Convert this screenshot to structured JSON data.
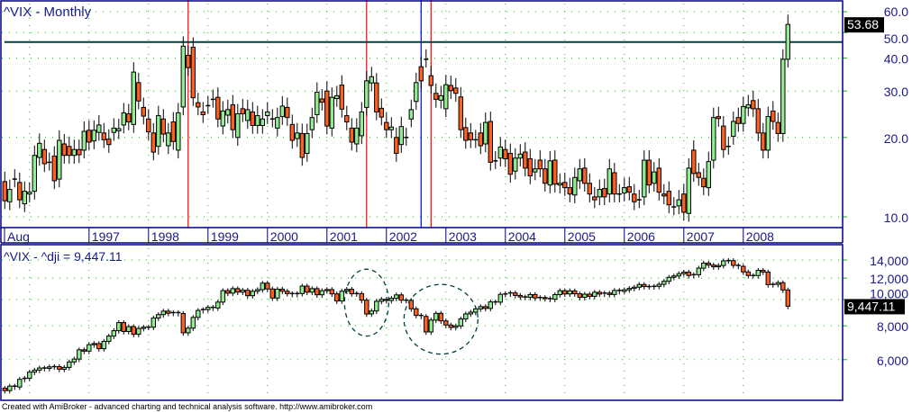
{
  "upper": {
    "title": "^VIX - Monthly",
    "last_value_label": "53.68",
    "horizontal_line_value": 46,
    "horizontal_line_color": "#004040"
  },
  "lower": {
    "title": "^VIX - ^dji = 9,447.11",
    "last_value_label": "9,447.11",
    "circled_periods": [
      {
        "from": "2001-06",
        "to": "2001-12"
      },
      {
        "from": "2002-06",
        "to": "2003-06"
      }
    ],
    "circle_color": "#004040"
  },
  "footer": "Created with AmiBroker - advanced charting and technical analysis software. http://www.amibroker.com",
  "colors": {
    "up": "#90ee90",
    "down": "#ff6020",
    "grid": "#00cc00",
    "axis_text": "#1a1a8c",
    "frame": "#000080",
    "marker_red": "#ff0000",
    "marker_blue": "#0000ff"
  },
  "chart_data": [
    {
      "type": "candlestick",
      "title": "^VIX - Monthly",
      "scale": "log",
      "ylim": [
        9,
        62
      ],
      "yticks": [
        "10.0",
        "20.0",
        "30.0",
        "40.0",
        "50.0",
        "60.0"
      ],
      "ytick_values": [
        10,
        20,
        30,
        40,
        50,
        60
      ],
      "x_start": "1995-08",
      "x_end": "2008-10",
      "xtick_labels": [
        "Aug",
        "1997",
        "1998",
        "1999",
        "2000",
        "2001",
        "2002",
        "2003",
        "2004",
        "2005",
        "2006",
        "2007",
        "2008"
      ],
      "grid": true,
      "vertical_markers": [
        {
          "month": "1998-09",
          "color": "#ff0000"
        },
        {
          "month": "2001-09",
          "color": "#ff0000"
        },
        {
          "month": "2002-08",
          "color": "#0000ff"
        },
        {
          "month": "2002-10",
          "color": "#ff0000"
        }
      ],
      "open_close": [
        [
          13.6,
          11.5
        ],
        [
          11.4,
          12.7
        ],
        [
          13.9,
          13.9
        ],
        [
          13.5,
          11.6
        ],
        [
          11.2,
          12.5
        ],
        [
          12.2,
          12.4
        ],
        [
          12.5,
          17.1
        ],
        [
          16.8,
          19.0
        ],
        [
          18.0,
          15.9
        ],
        [
          16.1,
          16.1
        ],
        [
          17.0,
          13.7
        ],
        [
          13.9,
          19.5
        ],
        [
          18.9,
          17.1
        ],
        [
          18.5,
          17.1
        ],
        [
          17.1,
          18.0
        ],
        [
          18.0,
          17.2
        ],
        [
          17.9,
          21.1
        ],
        [
          21.3,
          19.2
        ],
        [
          19.4,
          21.3
        ],
        [
          20.9,
          22.3
        ],
        [
          20.8,
          19.6
        ],
        [
          19.7,
          18.8
        ],
        [
          20.9,
          21.7
        ],
        [
          21.2,
          21.6
        ],
        [
          22.3,
          24.8
        ],
        [
          24.6,
          22.9
        ],
        [
          22.4,
          35.4
        ],
        [
          32.3,
          27.5
        ],
        [
          26.0,
          24.1
        ],
        [
          23.5,
          21.0
        ],
        [
          20.8,
          17.6
        ],
        [
          18.5,
          24.2
        ],
        [
          23.5,
          20.6
        ],
        [
          18.6,
          20.8
        ],
        [
          22.9,
          19.3
        ],
        [
          17.9,
          24.8
        ],
        [
          26.1,
          44.4
        ],
        [
          41.0,
          36.8
        ],
        [
          44.0,
          28.3
        ],
        [
          27.1,
          26.1
        ],
        [
          25.0,
          24.4
        ],
        [
          26.4,
          26.4
        ],
        [
          27.9,
          27.9
        ],
        [
          28.4,
          23.5
        ],
        [
          22.1,
          25.2
        ],
        [
          24.3,
          25.5
        ],
        [
          26.6,
          21.4
        ],
        [
          20.0,
          24.6
        ],
        [
          25.7,
          24.6
        ],
        [
          23.2,
          25.5
        ],
        [
          25.0,
          22.2
        ],
        [
          22.2,
          24.2
        ],
        [
          22.2,
          23.5
        ],
        [
          24.2,
          25.0
        ],
        [
          23.5,
          23.5
        ],
        [
          21.7,
          23.8
        ],
        [
          24.0,
          26.3
        ],
        [
          26.0,
          23.8
        ],
        [
          22.4,
          19.5
        ],
        [
          19.8,
          20.8
        ],
        [
          20.7,
          16.8
        ],
        [
          17.4,
          20.7
        ],
        [
          21.4,
          23.8
        ],
        [
          24.4,
          29.7
        ],
        [
          28.0,
          27.2
        ],
        [
          30.0,
          22.1
        ],
        [
          21.7,
          28.4
        ],
        [
          28.1,
          28.8
        ],
        [
          31.6,
          25.6
        ],
        [
          24.2,
          22.9
        ],
        [
          21.7,
          19.2
        ],
        [
          18.9,
          21.7
        ],
        [
          20.3,
          25.0
        ],
        [
          26.0,
          32.8
        ],
        [
          32.2,
          34.0
        ],
        [
          32.2,
          25.0
        ],
        [
          25.8,
          23.9
        ],
        [
          22.8,
          21.4
        ],
        [
          21.4,
          21.9
        ],
        [
          20.0,
          17.4
        ],
        [
          18.8,
          22.0
        ],
        [
          20.0,
          20.0
        ],
        [
          23.5,
          25.5
        ],
        [
          27.4,
          32.3
        ],
        [
          37.1,
          32.8
        ],
        [
          39.6,
          39.6
        ],
        [
          34.3,
          31.5
        ],
        [
          29.4,
          27.9
        ],
        [
          27.7,
          28.8
        ],
        [
          25.7,
          31.7
        ],
        [
          31.5,
          30.1
        ],
        [
          30.8,
          29.4
        ],
        [
          28.5,
          21.4
        ],
        [
          21.8,
          19.5
        ],
        [
          20.8,
          19.6
        ],
        [
          19.6,
          19.6
        ],
        [
          20.8,
          18.6
        ],
        [
          18.9,
          22.8
        ],
        [
          23.0,
          16.1
        ],
        [
          16.3,
          16.3
        ],
        [
          16.7,
          18.4
        ],
        [
          18.0,
          16.6
        ],
        [
          17.4,
          14.5
        ],
        [
          14.9,
          16.7
        ],
        [
          16.7,
          17.3
        ],
        [
          17.6,
          15.3
        ],
        [
          16.6,
          14.3
        ],
        [
          14.8,
          15.2
        ],
        [
          16.4,
          15.2
        ],
        [
          15.2,
          13.4
        ],
        [
          13.2,
          16.3
        ],
        [
          16.4,
          13.3
        ],
        [
          13.2,
          13.4
        ],
        [
          13.5,
          12.9
        ],
        [
          12.9,
          12.2
        ],
        [
          12.1,
          14.1
        ],
        [
          13.7,
          15.2
        ],
        [
          15.3,
          13.4
        ],
        [
          13.4,
          12.2
        ],
        [
          11.9,
          11.6
        ],
        [
          11.9,
          12.7
        ],
        [
          12.8,
          11.9
        ],
        [
          12.2,
          15.2
        ],
        [
          14.7,
          12.2
        ],
        [
          12.2,
          12.2
        ],
        [
          12.3,
          12.9
        ],
        [
          13.0,
          12.4
        ],
        [
          12.2,
          11.4
        ],
        [
          11.6,
          11.6
        ],
        [
          11.9,
          16.4
        ],
        [
          16.4,
          13.2
        ],
        [
          13.4,
          14.8
        ],
        [
          15.3,
          12.4
        ],
        [
          12.2,
          12.0
        ],
        [
          12.5,
          11.1
        ],
        [
          10.9,
          10.9
        ],
        [
          11.0,
          11.6
        ],
        [
          12.2,
          10.4
        ],
        [
          10.3,
          15.3
        ],
        [
          17.9,
          14.6
        ],
        [
          14.7,
          14.1
        ],
        [
          14.0,
          13.0
        ],
        [
          12.9,
          16.2
        ],
        [
          16.4,
          23.8
        ],
        [
          24.0,
          23.6
        ],
        [
          22.1,
          18.0
        ],
        [
          18.5,
          18.5
        ],
        [
          20.2,
          23.0
        ],
        [
          23.8,
          22.6
        ],
        [
          22.6,
          26.2
        ],
        [
          25.9,
          26.6
        ],
        [
          27.6,
          25.7
        ],
        [
          25.7,
          20.8
        ],
        [
          20.8,
          17.9
        ],
        [
          17.9,
          24.0
        ],
        [
          25.2,
          23.0
        ],
        [
          22.8,
          20.7
        ],
        [
          20.7,
          39.6
        ],
        [
          39.6,
          53.68
        ]
      ]
    },
    {
      "type": "candlestick",
      "title": "^VIX - ^dji = 9,447.11",
      "scale": "log",
      "ylim": [
        4400,
        16500
      ],
      "yticks": [
        "6,000",
        "8,000",
        "10,000",
        "12,000",
        "14,000"
      ],
      "ytick_values": [
        6000,
        8000,
        10000,
        12000,
        14000
      ],
      "x_start": "1995-08",
      "x_end": "2008-10",
      "grid": true,
      "first_open": 4708,
      "closes": [
        4611,
        4789,
        4756,
        5075,
        5117,
        5395,
        5486,
        5587,
        5569,
        5643,
        5654,
        5529,
        5616,
        5882,
        6029,
        6522,
        6448,
        6813,
        6878,
        6584,
        7009,
        7331,
        7673,
        8223,
        7622,
        7945,
        7442,
        7823,
        7908,
        7907,
        8546,
        8800,
        9063,
        8900,
        8952,
        8883,
        7539,
        7843,
        8592,
        9117,
        9181,
        9359,
        9307,
        9786,
        10789,
        10560,
        10971,
        10655,
        10829,
        10337,
        10729,
        10878,
        11497,
        10941,
        10128,
        10922,
        10734,
        10522,
        10448,
        10522,
        11215,
        10651,
        10971,
        10415,
        10787,
        10887,
        10495,
        9879,
        10735,
        10912,
        10502,
        10523,
        9950,
        8848,
        9075,
        9852,
        10022,
        9920,
        10106,
        10404,
        9946,
        9925,
        9243,
        8737,
        8664,
        7592,
        8397,
        8896,
        8342,
        8054,
        7891,
        7992,
        8480,
        8850,
        8985,
        9234,
        9416,
        9275,
        9801,
        9782,
        10454,
        10488,
        10584,
        10358,
        10226,
        10188,
        10435,
        10140,
        10174,
        10080,
        10027,
        10428,
        10783,
        10490,
        10766,
        10504,
        10193,
        10467,
        10275,
        10641,
        10482,
        10569,
        10440,
        10806,
        10718,
        10865,
        10993,
        11109,
        11367,
        11168,
        11150,
        11186,
        11381,
        11679,
        12081,
        12222,
        12463,
        12622,
        12269,
        12354,
        13063,
        13628,
        13409,
        13212,
        13358,
        13896,
        13930,
        13372,
        13265,
        12650,
        12266,
        12263,
        12820,
        12638,
        11350,
        11378,
        11544,
        10851,
        9447.11
      ]
    }
  ]
}
